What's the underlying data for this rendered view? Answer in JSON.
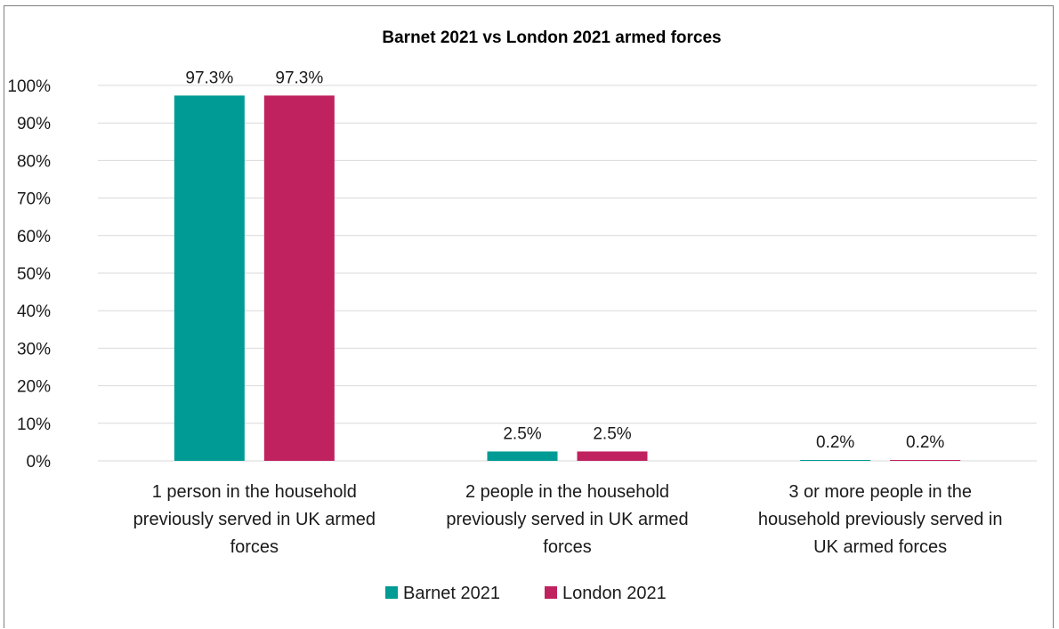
{
  "chart_data": {
    "type": "bar",
    "title": "Barnet 2021 vs London 2021 armed forces",
    "xlabel": "",
    "ylabel": "",
    "ylim": [
      0,
      100
    ],
    "yticks": [
      "0%",
      "10%",
      "20%",
      "30%",
      "40%",
      "50%",
      "60%",
      "70%",
      "80%",
      "90%",
      "100%"
    ],
    "grid": true,
    "legend_position": "bottom",
    "categories": [
      [
        "1 person in the household",
        "previously served in UK armed",
        "forces"
      ],
      [
        "2 people in the household",
        "previously served in UK armed",
        "forces"
      ],
      [
        "3 or more people in the",
        "household previously served in",
        "UK armed forces"
      ]
    ],
    "series": [
      {
        "name": "Barnet 2021",
        "color": "#009b95",
        "values": [
          97.3,
          2.5,
          0.2
        ],
        "labels": [
          "97.3%",
          "2.5%",
          "0.2%"
        ]
      },
      {
        "name": "London 2021",
        "color": "#c0215f",
        "values": [
          97.3,
          2.5,
          0.2
        ],
        "labels": [
          "97.3%",
          "2.5%",
          "0.2%"
        ]
      }
    ]
  }
}
